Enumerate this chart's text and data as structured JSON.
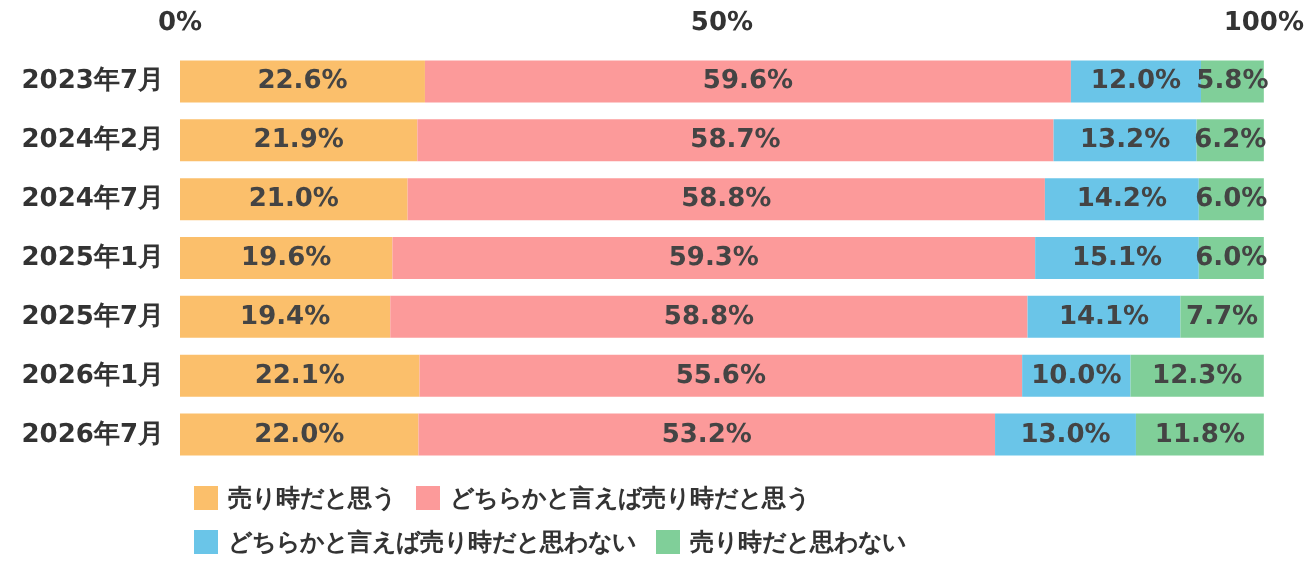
{
  "chart_data": {
    "type": "bar",
    "orientation": "horizontal",
    "stacked": true,
    "legend": "bottom",
    "categories": [
      "2023年7月",
      "2024年2月",
      "2024年7月",
      "2025年1月",
      "2025年7月",
      "2026年1月",
      "2026年7月"
    ],
    "xlim": [
      0,
      100
    ],
    "xticks": [
      {
        "value": 0,
        "label": "0%"
      },
      {
        "value": 50,
        "label": "50%"
      },
      {
        "value": 100,
        "label": "100%"
      }
    ],
    "series": [
      {
        "name": "売り時だと思う",
        "color": "#fbbf6b",
        "values": [
          22.6,
          21.9,
          21.0,
          19.6,
          19.4,
          22.1,
          22.0
        ],
        "value_labels": [
          "22.6%",
          "21.9%",
          "21.0%",
          "19.6%",
          "19.4%",
          "22.1%",
          "22.0%"
        ]
      },
      {
        "name": "どちらかと言えば売り時だと思う",
        "color": "#fc9a9a",
        "values": [
          59.6,
          58.7,
          58.8,
          59.3,
          58.8,
          55.6,
          53.2
        ],
        "value_labels": [
          "59.6%",
          "58.7%",
          "58.8%",
          "59.3%",
          "58.8%",
          "55.6%",
          "53.2%"
        ]
      },
      {
        "name": "どちらかと言えば売り時だと思わない",
        "color": "#6ac5e8",
        "values": [
          12.0,
          13.2,
          14.2,
          15.1,
          14.1,
          10.0,
          13.0
        ],
        "value_labels": [
          "12.0%",
          "13.2%",
          "14.2%",
          "15.1%",
          "14.1%",
          "10.0%",
          "13.0%"
        ]
      },
      {
        "name": "売り時だと思わない",
        "color": "#80cf99",
        "values": [
          5.8,
          6.2,
          6.0,
          6.0,
          7.7,
          12.3,
          11.8
        ],
        "value_labels": [
          "5.8%",
          "6.2%",
          "6.0%",
          "6.0%",
          "7.7%",
          "12.3%",
          "11.8%"
        ]
      }
    ]
  }
}
